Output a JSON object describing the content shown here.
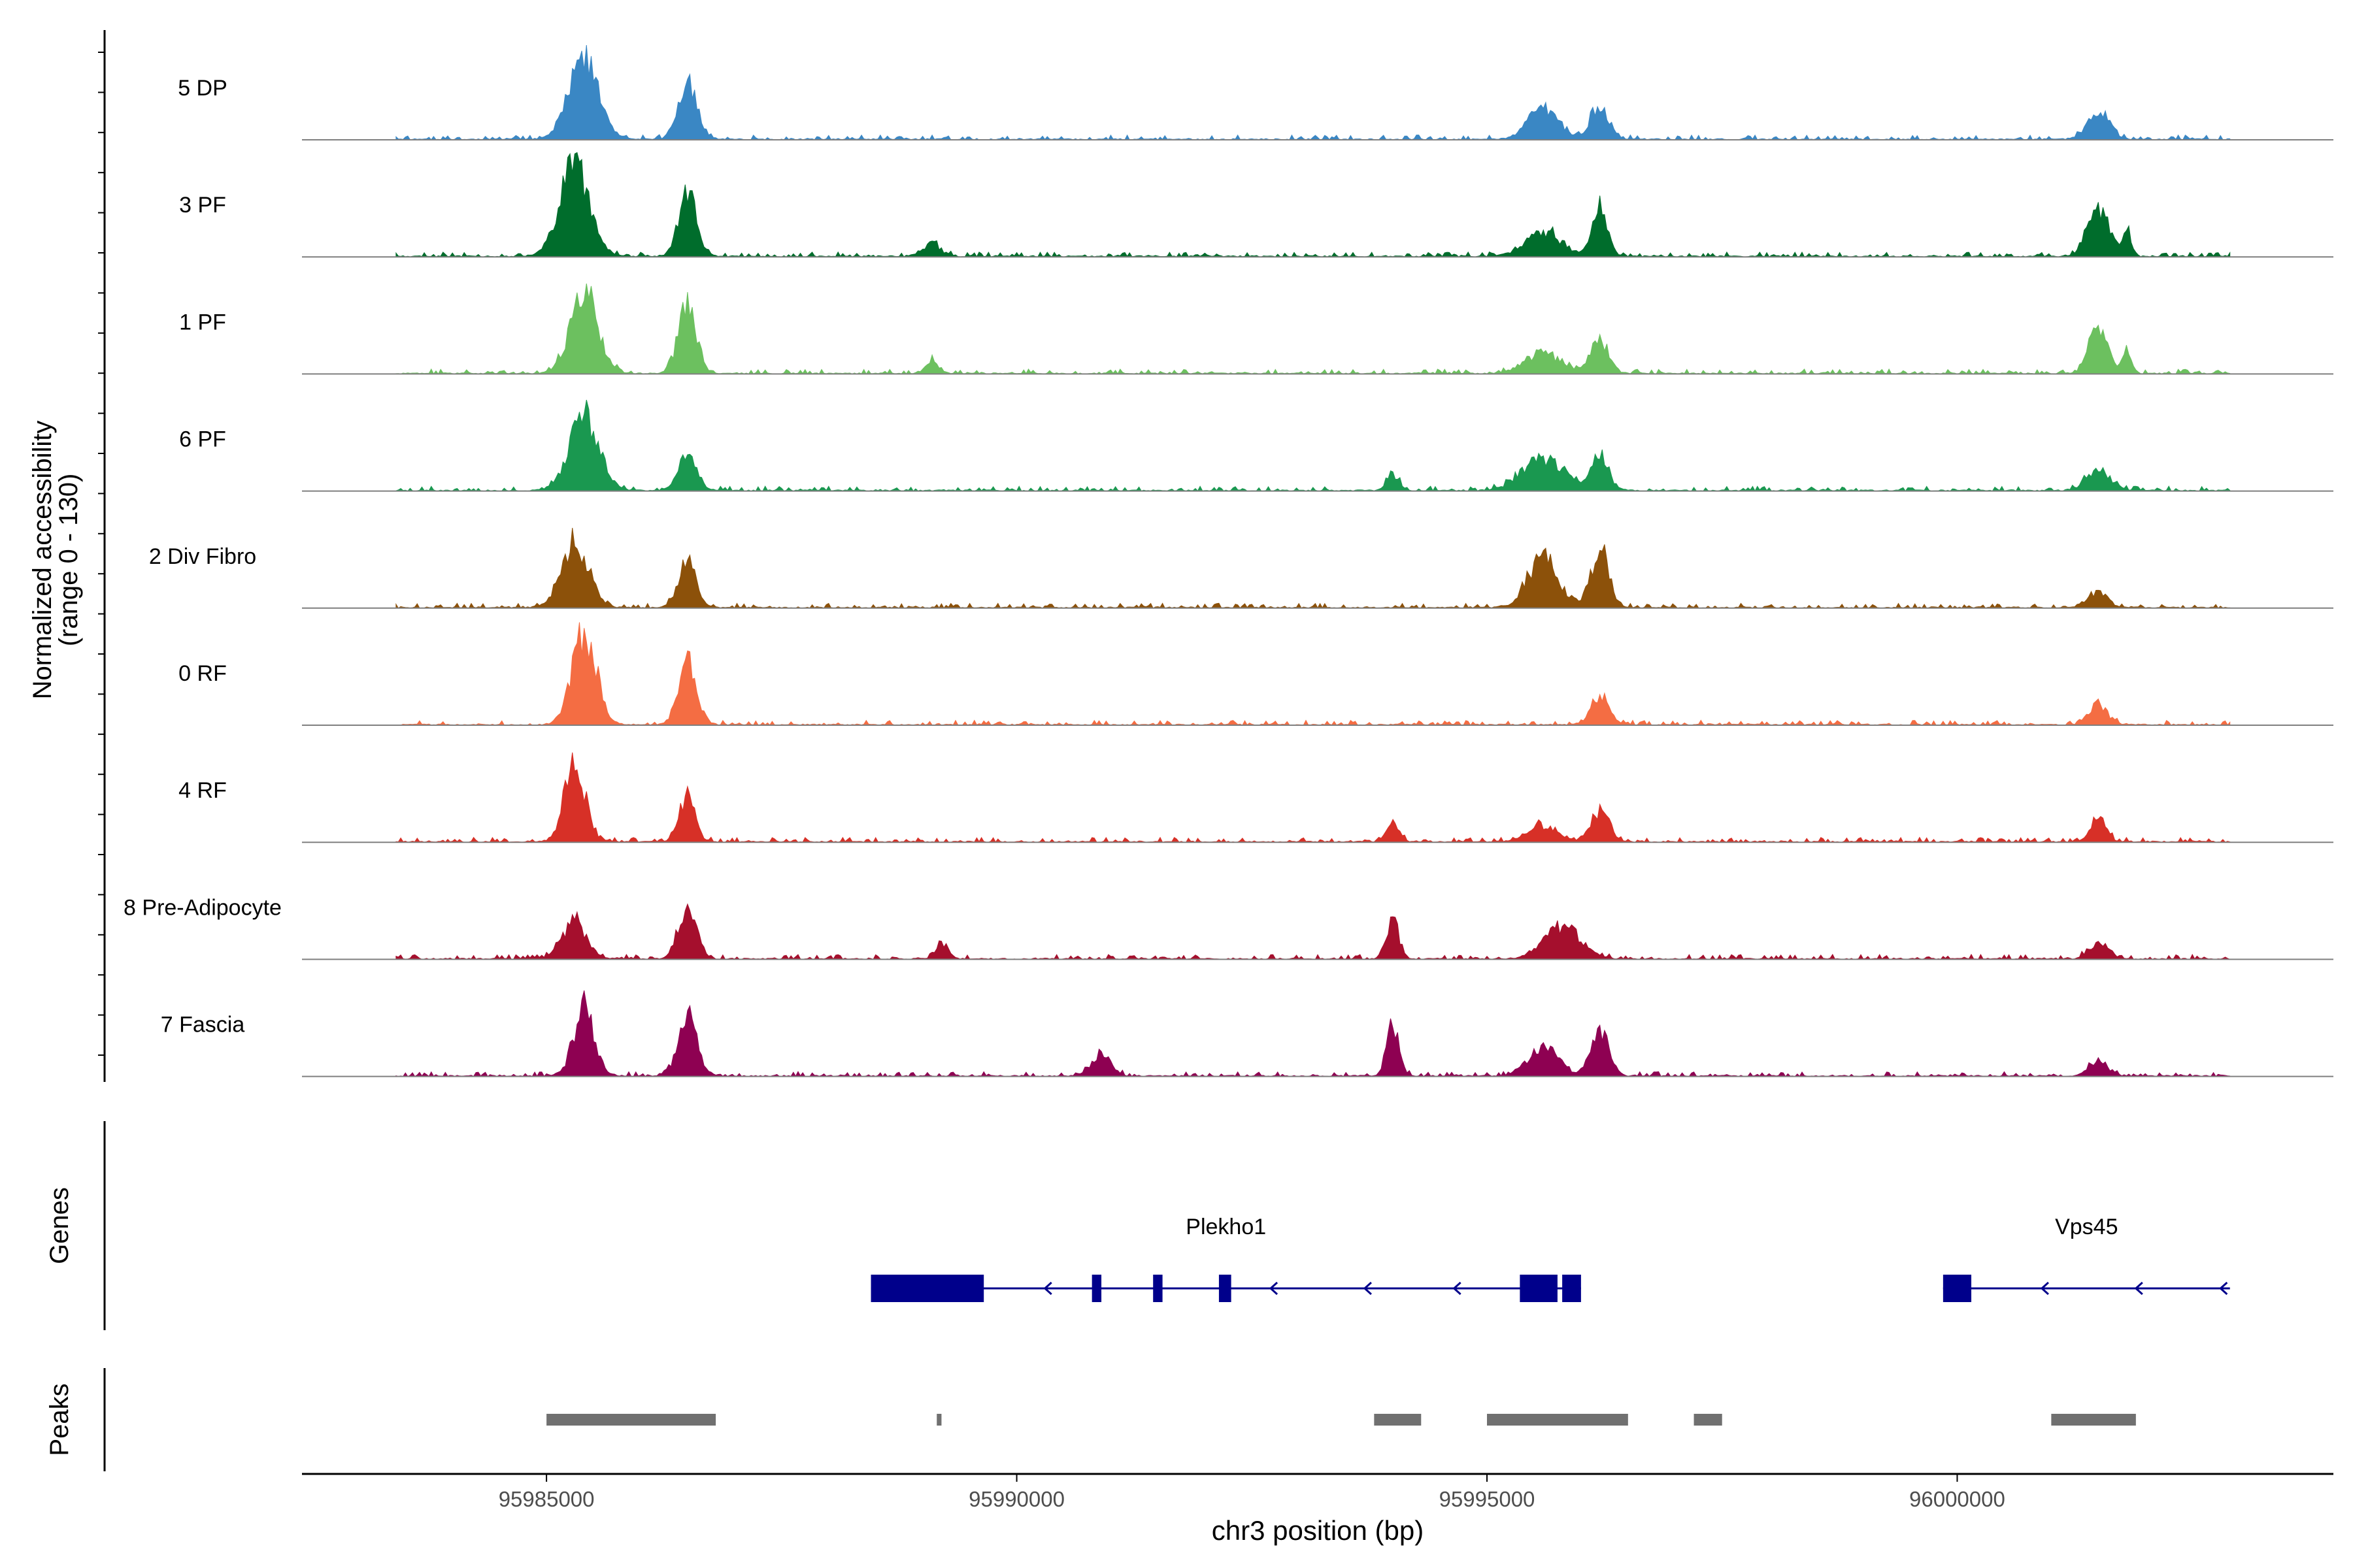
{
  "chart_data": {
    "type": "area",
    "region": {
      "chrom": "chr3",
      "start": 95982400,
      "end": 96004000
    },
    "xlabel": "chr3 position (bp)",
    "x_ticks": [
      95985000,
      95990000,
      95995000,
      96000000
    ],
    "x_tick_labels": [
      "95985000",
      "95990000",
      "95995000",
      "96000000"
    ],
    "ylabel": [
      "Normalized accessibility",
      "(range 0 - 130)"
    ],
    "ylim": [
      0,
      130
    ],
    "track_range": [
      95983400,
      96002900
    ],
    "tracks": [
      {
        "name": "5 DP",
        "color": "#3a87c4",
        "peaks": [
          [
            95985400,
            95,
            500
          ],
          [
            95986500,
            75,
            300
          ],
          [
            95995600,
            40,
            500
          ],
          [
            95996200,
            40,
            300
          ],
          [
            96001500,
            35,
            350
          ]
        ]
      },
      {
        "name": "3 PF",
        "color": "#006d2c",
        "peaks": [
          [
            95985300,
            110,
            500
          ],
          [
            95986500,
            75,
            300
          ],
          [
            95989100,
            15,
            300
          ],
          [
            95995600,
            30,
            600
          ],
          [
            95996200,
            60,
            250
          ],
          [
            96001500,
            60,
            350
          ],
          [
            96001800,
            30,
            150
          ]
        ]
      },
      {
        "name": "1 PF",
        "color": "#6cc05f",
        "peaks": [
          [
            95985400,
            100,
            450
          ],
          [
            95986500,
            85,
            300
          ],
          [
            95989100,
            15,
            200
          ],
          [
            95995600,
            25,
            600
          ],
          [
            95996200,
            40,
            300
          ],
          [
            96001500,
            60,
            300
          ],
          [
            96001800,
            30,
            150
          ]
        ]
      },
      {
        "name": "6 PF",
        "color": "#1a9850",
        "peaks": [
          [
            95985400,
            90,
            500
          ],
          [
            95986500,
            45,
            300
          ],
          [
            95994000,
            20,
            200
          ],
          [
            95995600,
            40,
            700
          ],
          [
            95996200,
            40,
            300
          ],
          [
            96001500,
            25,
            400
          ]
        ]
      },
      {
        "name": "2 Div Fibro",
        "color": "#8c510a",
        "peaks": [
          [
            95985300,
            80,
            450
          ],
          [
            95986500,
            55,
            300
          ],
          [
            95995600,
            60,
            500
          ],
          [
            95996200,
            70,
            300
          ],
          [
            96001500,
            20,
            300
          ]
        ]
      },
      {
        "name": "0 RF",
        "color": "#f46d43",
        "peaks": [
          [
            95985400,
            115,
            400
          ],
          [
            95986500,
            80,
            300
          ],
          [
            95996200,
            35,
            300
          ],
          [
            96001500,
            25,
            300
          ]
        ]
      },
      {
        "name": "4 RF",
        "color": "#d73027",
        "peaks": [
          [
            95985300,
            95,
            350
          ],
          [
            95986500,
            60,
            250
          ],
          [
            95994000,
            25,
            200
          ],
          [
            95995600,
            20,
            500
          ],
          [
            95996200,
            35,
            300
          ],
          [
            96001500,
            30,
            250
          ]
        ]
      },
      {
        "name": "8 Pre-Adipocyte",
        "color": "#a50f2d",
        "peaks": [
          [
            95985300,
            45,
            400
          ],
          [
            95986500,
            65,
            300
          ],
          [
            95989200,
            20,
            200
          ],
          [
            95994000,
            50,
            200
          ],
          [
            95995800,
            40,
            600
          ],
          [
            96001500,
            20,
            300
          ]
        ]
      },
      {
        "name": "7 Fascia",
        "color": "#8e0152",
        "peaks": [
          [
            95985400,
            80,
            350
          ],
          [
            95986500,
            75,
            300
          ],
          [
            95990900,
            30,
            300
          ],
          [
            95994000,
            65,
            200
          ],
          [
            95995600,
            35,
            500
          ],
          [
            95996200,
            55,
            300
          ],
          [
            96001500,
            20,
            300
          ]
        ]
      }
    ],
    "genes_label": "Genes",
    "genes": [
      {
        "name": "Plekho1",
        "start": 95988450,
        "end": 95996000,
        "strand": "-",
        "exons": [
          [
            95988450,
            95989650
          ],
          [
            95990800,
            95990900
          ],
          [
            95991450,
            95991550
          ],
          [
            95992150,
            95992280
          ],
          [
            95995350,
            95995750
          ],
          [
            95995800,
            95996000
          ]
        ],
        "arrows": [
          95990300,
          95992700,
          95993700,
          95994650
        ]
      },
      {
        "name": "Vps45",
        "start": 95999850,
        "end": 96002900,
        "strand": "-",
        "exons": [
          [
            95999850,
            96000150
          ]
        ],
        "arrows": [
          96000900,
          96001900,
          96002800
        ]
      }
    ],
    "peaks_label": "Peaks",
    "peak_regions": [
      [
        95985000,
        95986800
      ],
      [
        95989150,
        95989200
      ],
      [
        95993800,
        95994300
      ],
      [
        95995000,
        95996500
      ],
      [
        95997200,
        95997500
      ],
      [
        96001000,
        96001900
      ]
    ]
  }
}
